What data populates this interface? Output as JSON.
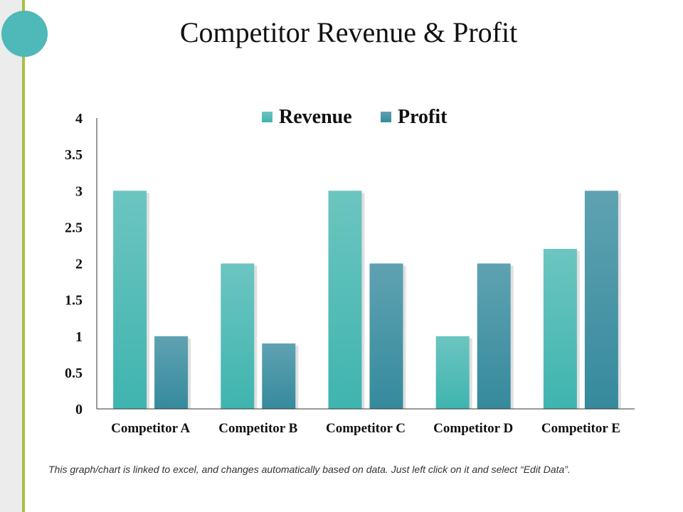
{
  "slide": {
    "title": "Competitor Revenue & Profit",
    "footnote": "This graph/chart is linked to excel, and changes automatically based on data. Just left click on it and select “Edit Data”."
  },
  "colors": {
    "revenue": "#4ebcb7",
    "profit": "#3c8fa2",
    "accent_line": "#a9c040",
    "accent_circle": "#4fb8b8"
  },
  "chart_data": {
    "type": "bar",
    "categories": [
      "Competitor A",
      "Competitor B",
      "Competitor C",
      "Competitor D",
      "Competitor E"
    ],
    "series": [
      {
        "name": "Revenue",
        "values": [
          3,
          2,
          3,
          1,
          2.2
        ]
      },
      {
        "name": "Profit",
        "values": [
          1,
          0.9,
          2,
          2,
          3
        ]
      }
    ],
    "title": "Competitor Revenue & Profit",
    "xlabel": "",
    "ylabel": "",
    "ylim": [
      0,
      4
    ],
    "yticks": [
      "0",
      "0.5",
      "1",
      "1.5",
      "2",
      "2.5",
      "3",
      "3.5",
      "4"
    ],
    "grid": false,
    "legend_position": "top"
  }
}
